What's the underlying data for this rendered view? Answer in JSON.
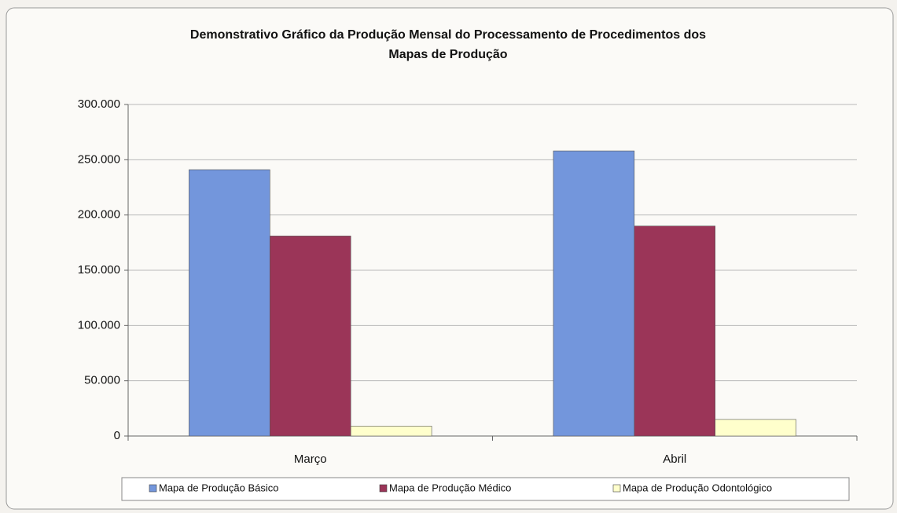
{
  "chart_data": {
    "type": "bar",
    "title": [
      "Demonstrativo Gráfico da Produção Mensal do Processamento de Procedimentos dos",
      "Mapas de Produção"
    ],
    "categories": [
      "Março",
      "Abril"
    ],
    "series": [
      {
        "name": "Mapa de Produção Básico",
        "color": "#7396dc",
        "values": [
          241000,
          258000
        ]
      },
      {
        "name": "Mapa de Produção Médico",
        "color": "#9b3558",
        "values": [
          181000,
          190000
        ]
      },
      {
        "name": "Mapa de Produção Odontológico",
        "color": "#ffffcc",
        "values": [
          9000,
          15000
        ]
      }
    ],
    "ylim": [
      0,
      300000
    ],
    "yticks": [
      0,
      {
        "value": 50000,
        "label": "50.000"
      },
      {
        "value": 100000,
        "label": "100.000"
      },
      {
        "value": 150000,
        "label": "150.000"
      },
      {
        "value": 200000,
        "label": "200.000"
      },
      {
        "value": 250000,
        "label": "250.000"
      },
      {
        "value": 300000,
        "label": "300.000"
      }
    ],
    "grid": true
  }
}
